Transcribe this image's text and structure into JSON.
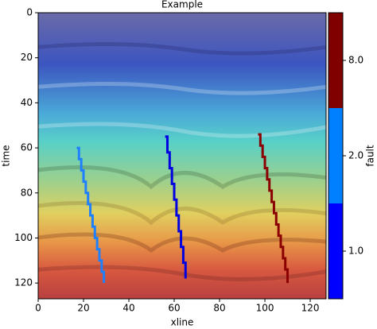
{
  "chart_data": {
    "type": "line",
    "title": "Example",
    "x_label": "xline",
    "y_label": "time",
    "xlim": [
      0,
      127
    ],
    "ylim": [
      127,
      0
    ],
    "xticks": [
      0,
      20,
      40,
      60,
      80,
      100,
      120
    ],
    "yticks": [
      0,
      20,
      40,
      60,
      80,
      100,
      120
    ],
    "series": [
      {
        "color": "#1e80ff",
        "x": [
          17,
          18,
          19,
          20,
          21,
          22,
          23,
          24,
          25,
          26,
          27,
          28,
          29
        ],
        "values": [
          60,
          65,
          70,
          75,
          80,
          85,
          90,
          95,
          100,
          105,
          110,
          115,
          120
        ]
      },
      {
        "color": "#0000e0",
        "x": [
          56,
          57,
          58,
          59,
          60,
          61,
          62,
          63,
          64,
          65
        ],
        "values": [
          55,
          62,
          69,
          76,
          83,
          90,
          97,
          104,
          111,
          118
        ]
      },
      {
        "color": "#8b0000",
        "x": [
          97,
          98,
          99,
          100,
          101,
          102,
          103,
          104,
          105,
          106,
          107,
          108,
          109,
          110
        ],
        "values": [
          54,
          59,
          64,
          69,
          74,
          79,
          84,
          89,
          94,
          99,
          104,
          109,
          114,
          120
        ]
      }
    ],
    "colorbar": {
      "label": "fault",
      "levels": [
        {
          "value": 1,
          "label": "1.0",
          "color": "#0000ff"
        },
        {
          "value": 2,
          "label": "2.0",
          "color": "#0080ff"
        },
        {
          "value": 8,
          "label": "8.0",
          "color": "#800000"
        }
      ]
    }
  }
}
